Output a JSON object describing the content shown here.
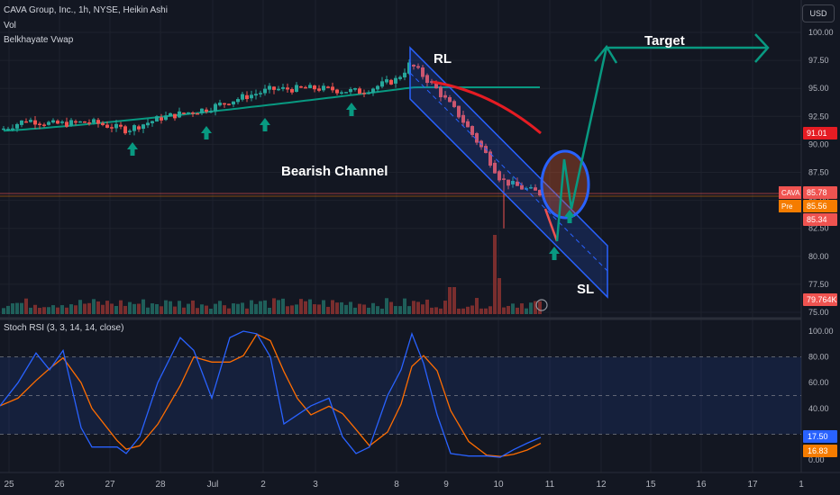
{
  "header": {
    "title": "CAVA Group, Inc., 1h, NYSE, Heikin Ashi",
    "vol_label": "Vol",
    "vwap_label": "Belkhayate Vwap",
    "currency": "USD"
  },
  "annotations": {
    "rl": "RL",
    "target": "Target",
    "channel": "Bearish Channel",
    "sl": "SL"
  },
  "rsi_legend": "Stoch RSI (3, 3, 14, 14, close)",
  "colors": {
    "background": "#131722",
    "up": "#26a69a",
    "down": "#ef5350",
    "channel": "#2962ff",
    "target_line": "#089981",
    "rsi_k": "#2962ff",
    "rsi_d": "#ff6d00",
    "red_curve": "#e51c23"
  },
  "price_badges": [
    {
      "label": "",
      "value": "91.01",
      "color": "#e51c23"
    },
    {
      "label": "CAVA",
      "value": "85.78",
      "color": "#ef5350"
    },
    {
      "label": "Pre",
      "value": "85.56",
      "color": "#f57c00"
    },
    {
      "label": "",
      "value": "85.34",
      "color": "#ef5350"
    },
    {
      "label": "",
      "value": "79.764K",
      "color": "#ef5350"
    }
  ],
  "rsi_badges": [
    {
      "value": "17.50",
      "color": "#2962ff"
    },
    {
      "value": "16.83",
      "color": "#f57c00"
    }
  ],
  "chart_data": {
    "type": "candlestick",
    "price_axis": {
      "ticks": [
        "100.00",
        "97.50",
        "95.00",
        "92.50",
        "90.00",
        "87.50",
        "85.00",
        "82.50",
        "80.00",
        "77.50",
        "75.00"
      ],
      "range": [
        75,
        100
      ]
    },
    "time_axis": {
      "ticks": [
        "25",
        "26",
        "27",
        "28",
        "Jul",
        "2",
        "3",
        "8",
        "9",
        "10",
        "11",
        "12",
        "15",
        "16",
        "17",
        "1"
      ]
    },
    "candles_approx": [
      {
        "date": "25",
        "close": 91.6
      },
      {
        "date": "26",
        "close": 92.0
      },
      {
        "date": "27",
        "close": 91.3
      },
      {
        "date": "28",
        "close": 92.4
      },
      {
        "date": "Jul",
        "close": 93.0
      },
      {
        "date": "2",
        "close": 94.9
      },
      {
        "date": "3",
        "close": 95.0
      },
      {
        "date": "8",
        "close": 95.5
      },
      {
        "date": "9",
        "close": 92.0
      },
      {
        "date": "10",
        "close": 87.2
      },
      {
        "date": "11",
        "close": 85.8
      }
    ],
    "stoch_rsi": {
      "axis_ticks": [
        "100.00",
        "80.00",
        "60.00",
        "40.00",
        "20.00",
        "0.00"
      ],
      "range": [
        0,
        100
      ],
      "bands": [
        20,
        50,
        80
      ],
      "k_last": 17.5,
      "d_last": 16.83
    }
  }
}
